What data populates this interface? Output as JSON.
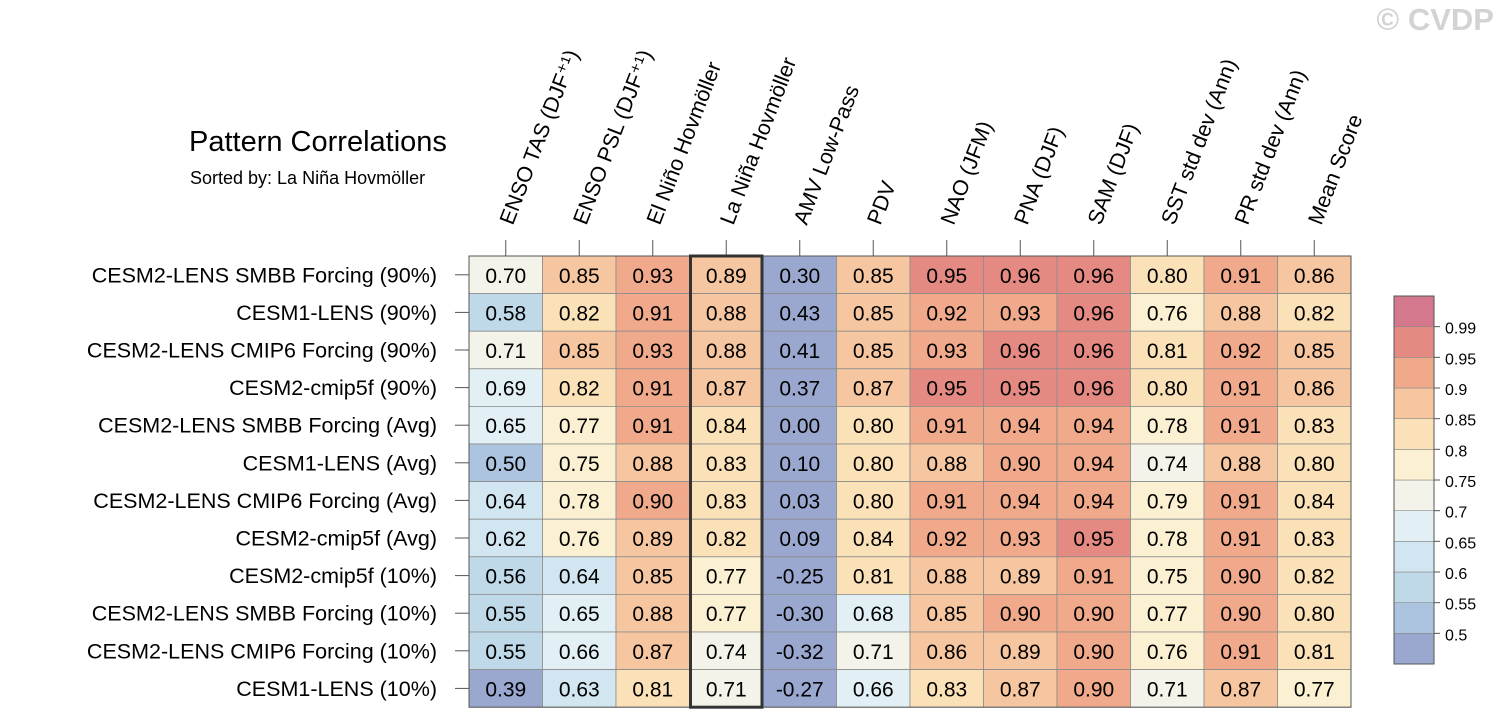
{
  "watermark": "© CVDP",
  "chart_data": {
    "type": "heatmap",
    "title": "Pattern Correlations",
    "subtitle": "Sorted by: La Niña Hovmöller",
    "columns": [
      "ENSO TAS (DJF⁺¹)",
      "ENSO PSL (DJF⁺¹)",
      "El Niño Hovmöller",
      "La Niña Hovmöller",
      "AMV Low-Pass",
      "PDV",
      "NAO (JFM)",
      "PNA (DJF)",
      "SAM (DJF)",
      "SST std dev (Ann)",
      "PR std dev (Ann)",
      "Mean Score"
    ],
    "rows": [
      "CESM2-LENS SMBB Forcing (90%)",
      "CESM1-LENS (90%)",
      "CESM2-LENS CMIP6 Forcing (90%)",
      "CESM2-cmip5f (90%)",
      "CESM2-LENS SMBB Forcing (Avg)",
      "CESM1-LENS (Avg)",
      "CESM2-LENS CMIP6 Forcing (Avg)",
      "CESM2-cmip5f (Avg)",
      "CESM2-cmip5f (10%)",
      "CESM2-LENS SMBB Forcing (10%)",
      "CESM2-LENS CMIP6 Forcing (10%)",
      "CESM1-LENS (10%)"
    ],
    "values": [
      [
        "0.70",
        "0.85",
        "0.93",
        "0.89",
        "0.30",
        "0.85",
        "0.95",
        "0.96",
        "0.96",
        "0.80",
        "0.91",
        "0.86"
      ],
      [
        "0.58",
        "0.82",
        "0.91",
        "0.88",
        "0.43",
        "0.85",
        "0.92",
        "0.93",
        "0.96",
        "0.76",
        "0.88",
        "0.82"
      ],
      [
        "0.71",
        "0.85",
        "0.93",
        "0.88",
        "0.41",
        "0.85",
        "0.93",
        "0.96",
        "0.96",
        "0.81",
        "0.92",
        "0.85"
      ],
      [
        "0.69",
        "0.82",
        "0.91",
        "0.87",
        "0.37",
        "0.87",
        "0.95",
        "0.95",
        "0.96",
        "0.80",
        "0.91",
        "0.86"
      ],
      [
        "0.65",
        "0.77",
        "0.91",
        "0.84",
        "0.00",
        "0.80",
        "0.91",
        "0.94",
        "0.94",
        "0.78",
        "0.91",
        "0.83"
      ],
      [
        "0.50",
        "0.75",
        "0.88",
        "0.83",
        "0.10",
        "0.80",
        "0.88",
        "0.90",
        "0.94",
        "0.74",
        "0.88",
        "0.80"
      ],
      [
        "0.64",
        "0.78",
        "0.90",
        "0.83",
        "0.03",
        "0.80",
        "0.91",
        "0.94",
        "0.94",
        "0.79",
        "0.91",
        "0.84"
      ],
      [
        "0.62",
        "0.76",
        "0.89",
        "0.82",
        "0.09",
        "0.84",
        "0.92",
        "0.93",
        "0.95",
        "0.78",
        "0.91",
        "0.83"
      ],
      [
        "0.56",
        "0.64",
        "0.85",
        "0.77",
        "-0.25",
        "0.81",
        "0.88",
        "0.89",
        "0.91",
        "0.75",
        "0.90",
        "0.82"
      ],
      [
        "0.55",
        "0.65",
        "0.88",
        "0.77",
        "-0.30",
        "0.68",
        "0.85",
        "0.90",
        "0.90",
        "0.77",
        "0.90",
        "0.80"
      ],
      [
        "0.55",
        "0.66",
        "0.87",
        "0.74",
        "-0.32",
        "0.71",
        "0.86",
        "0.89",
        "0.90",
        "0.76",
        "0.91",
        "0.81"
      ],
      [
        "0.39",
        "0.63",
        "0.81",
        "0.71",
        "-0.27",
        "0.66",
        "0.83",
        "0.87",
        "0.90",
        "0.71",
        "0.87",
        "0.77"
      ]
    ],
    "highlight_column": 3,
    "colorbar": {
      "levels": [
        0.5,
        0.55,
        0.6,
        0.65,
        0.7,
        0.75,
        0.8,
        0.85,
        0.9,
        0.95,
        0.99
      ],
      "labels": [
        "0.5",
        "0.55",
        "0.6",
        "0.65",
        "0.7",
        "0.75",
        "0.8",
        "0.85",
        "0.9",
        "0.95",
        "0.99"
      ],
      "colors": [
        "#9aa8d0",
        "#adc4e0",
        "#bfd9e9",
        "#d1e6f0",
        "#e2eff4",
        "#f3f3e9",
        "#fbf0d2",
        "#fae1b8",
        "#f6c6a0",
        "#f0a98a",
        "#e58a82",
        "#d4788d"
      ]
    }
  }
}
